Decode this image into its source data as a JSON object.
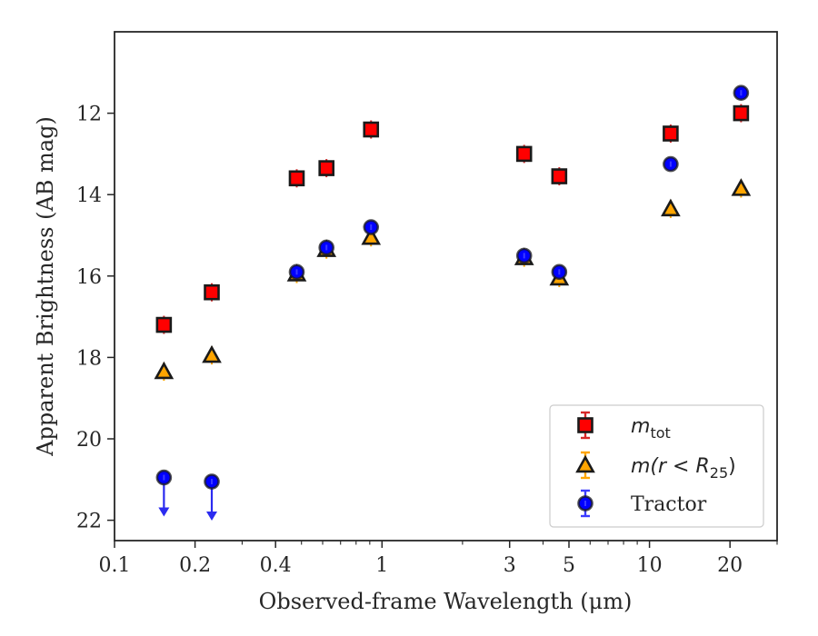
{
  "chart_data": {
    "type": "scatter",
    "xlabel": "Observed-frame Wavelength (μm)",
    "ylabel": "Apparent Brightness (AB mag)",
    "x_scale": "log",
    "xlim": [
      0.1,
      30
    ],
    "ylim": [
      22.5,
      10
    ],
    "y_inverted": true,
    "grid": false,
    "legend_position": "lower-right",
    "x_ticks": [
      {
        "value": 0.1,
        "label": "0.1"
      },
      {
        "value": 0.2,
        "label": "0.2"
      },
      {
        "value": 0.4,
        "label": "0.4"
      },
      {
        "value": 1,
        "label": "1"
      },
      {
        "value": 3,
        "label": "3"
      },
      {
        "value": 5,
        "label": "5"
      },
      {
        "value": 10,
        "label": "10"
      },
      {
        "value": 20,
        "label": "20"
      }
    ],
    "y_ticks": [
      {
        "value": 12,
        "label": "12"
      },
      {
        "value": 14,
        "label": "14"
      },
      {
        "value": 16,
        "label": "16"
      },
      {
        "value": 18,
        "label": "18"
      },
      {
        "value": 20,
        "label": "20"
      },
      {
        "value": 22,
        "label": "22"
      }
    ],
    "series": [
      {
        "name": "m_tot",
        "legend_main": "m",
        "legend_sub": "tot",
        "marker": "square",
        "color": "#ff0000",
        "edge_color": "#1a1a1a",
        "errbar_color": "#d62728",
        "points": [
          {
            "x": 0.153,
            "y": 17.2
          },
          {
            "x": 0.231,
            "y": 16.4
          },
          {
            "x": 0.48,
            "y": 13.6
          },
          {
            "x": 0.62,
            "y": 13.35
          },
          {
            "x": 0.91,
            "y": 12.4
          },
          {
            "x": 3.4,
            "y": 13.0
          },
          {
            "x": 4.6,
            "y": 13.55
          },
          {
            "x": 12.0,
            "y": 12.5
          },
          {
            "x": 22.0,
            "y": 12.0
          }
        ]
      },
      {
        "name": "m(r < R_25)",
        "legend_main": "m(r < R",
        "legend_sub": "25",
        "legend_tail": ")",
        "marker": "triangle",
        "color": "#ffa500",
        "edge_color": "#1a1a1a",
        "errbar_color": "#ffa500",
        "points": [
          {
            "x": 0.153,
            "y": 18.35
          },
          {
            "x": 0.231,
            "y": 17.95
          },
          {
            "x": 0.48,
            "y": 15.95
          },
          {
            "x": 0.62,
            "y": 15.35
          },
          {
            "x": 0.91,
            "y": 15.05
          },
          {
            "x": 3.4,
            "y": 15.55
          },
          {
            "x": 4.6,
            "y": 16.05
          },
          {
            "x": 12.0,
            "y": 14.35
          },
          {
            "x": 22.0,
            "y": 13.85
          }
        ]
      },
      {
        "name": "Tractor",
        "legend_main": "Tractor",
        "marker": "circle",
        "color": "#0000ff",
        "edge_color": "#1a1a1a",
        "errbar_color": "#3b3bff",
        "points": [
          {
            "x": 0.153,
            "y": 20.95,
            "upper_limit": true
          },
          {
            "x": 0.231,
            "y": 21.05,
            "upper_limit": true
          },
          {
            "x": 0.48,
            "y": 15.9
          },
          {
            "x": 0.62,
            "y": 15.3
          },
          {
            "x": 0.91,
            "y": 14.8
          },
          {
            "x": 3.4,
            "y": 15.5
          },
          {
            "x": 4.6,
            "y": 15.9
          },
          {
            "x": 12.0,
            "y": 13.25
          },
          {
            "x": 22.0,
            "y": 11.5
          }
        ]
      }
    ]
  }
}
